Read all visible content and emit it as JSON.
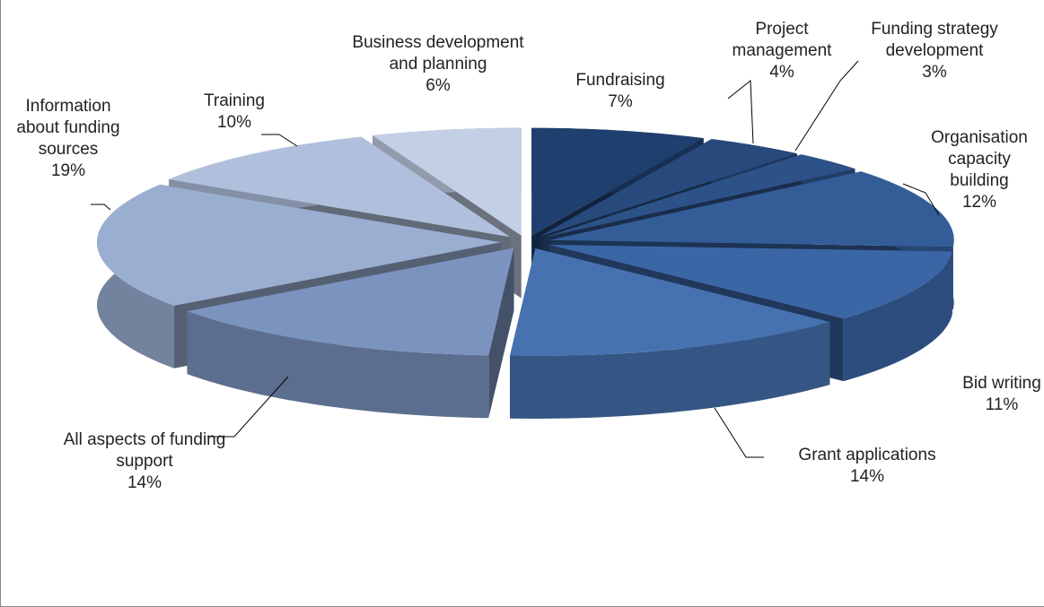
{
  "chart_data": {
    "type": "pie",
    "categories": [
      "Fundraising",
      "Project management",
      "Funding strategy development",
      "Organisation capacity building",
      "Bid writing",
      "Grant applications",
      "All aspects of funding support",
      "Information about funding sources",
      "Training",
      "Business development and planning"
    ],
    "values": [
      7,
      4,
      3,
      12,
      11,
      14,
      14,
      19,
      10,
      6
    ],
    "value_labels": [
      "7%",
      "4%",
      "3%",
      "12%",
      "11%",
      "14%",
      "14%",
      "19%",
      "10%",
      "6%"
    ],
    "colors": [
      "#1f3f6e",
      "#27497c",
      "#2d5288",
      "#345d98",
      "#3b66a6",
      "#4672b0",
      "#7b93bf",
      "#9aaed1",
      "#b0c0dc",
      "#c3cfe5"
    ]
  }
}
